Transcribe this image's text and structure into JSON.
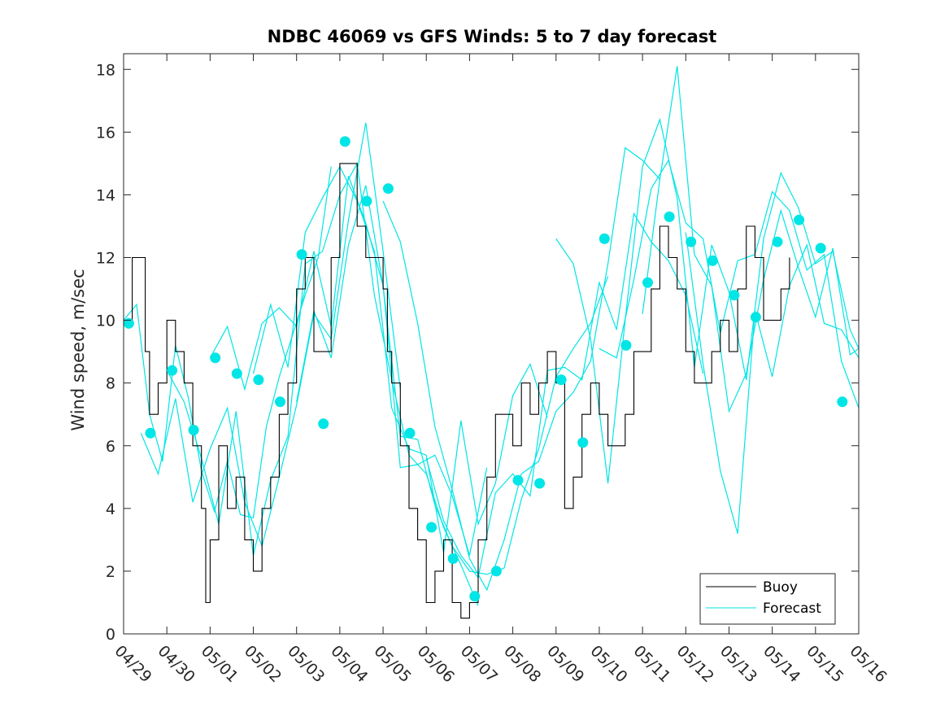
{
  "chart_data": {
    "type": "line",
    "title": "NDBC 46069 vs GFS Winds: 5 to 7 day forecast",
    "xlabel": "",
    "ylabel": "Wind speed, m/sec",
    "xlim": [
      0,
      17
    ],
    "ylim": [
      0,
      18.5
    ],
    "x_tick_labels": [
      "04/29",
      "04/30",
      "05/01",
      "05/02",
      "05/03",
      "05/04",
      "05/05",
      "05/06",
      "05/07",
      "05/08",
      "05/09",
      "05/10",
      "05/11",
      "05/12",
      "05/13",
      "05/14",
      "05/15",
      "05/16"
    ],
    "y_ticks": [
      0,
      2,
      4,
      6,
      8,
      10,
      12,
      14,
      16,
      18
    ],
    "legend": {
      "position": "bottom-right",
      "entries": [
        {
          "label": "Buoy",
          "color": "#000000"
        },
        {
          "label": "Forecast",
          "color": "#00e5e5"
        }
      ]
    },
    "colors": {
      "buoy": "#000000",
      "forecast": "#00e5e5",
      "markers": "#00e5e5"
    },
    "buoy": {
      "name": "Buoy",
      "x": [
        0.0,
        0.2,
        0.35,
        0.5,
        0.6,
        0.8,
        1.0,
        1.2,
        1.4,
        1.6,
        1.8,
        1.9,
        2.0,
        2.2,
        2.4,
        2.6,
        2.8,
        3.0,
        3.2,
        3.4,
        3.6,
        3.8,
        4.0,
        4.2,
        4.4,
        4.6,
        4.8,
        5.0,
        5.2,
        5.4,
        5.6,
        5.8,
        6.0,
        6.1,
        6.2,
        6.4,
        6.6,
        6.8,
        7.0,
        7.2,
        7.4,
        7.6,
        7.8,
        8.0,
        8.2,
        8.4,
        8.6,
        8.8,
        9.0,
        9.2,
        9.4,
        9.6,
        9.8,
        10.0,
        10.2,
        10.4,
        10.6,
        10.8,
        11.0,
        11.2,
        11.4,
        11.6,
        11.8,
        12.0,
        12.2,
        12.4,
        12.6,
        12.8,
        13.0,
        13.2,
        13.4,
        13.6,
        13.8,
        14.0,
        14.2,
        14.4,
        14.6,
        14.8,
        15.0,
        15.2,
        15.4
      ],
      "y": [
        10,
        12,
        12,
        9,
        7,
        8,
        10,
        9,
        8,
        6,
        4,
        1,
        3,
        6,
        4,
        5,
        3,
        2,
        4,
        5,
        7,
        8,
        11,
        12,
        9,
        9,
        12,
        15,
        15,
        13,
        12,
        12,
        11,
        9,
        8,
        6,
        4,
        3,
        1,
        2,
        3,
        1,
        0.5,
        1,
        3,
        5,
        7,
        7,
        6,
        8,
        7,
        8,
        9,
        8,
        4,
        5,
        7,
        8,
        7,
        6,
        6,
        7,
        9,
        9,
        11,
        13,
        12,
        11,
        9,
        8,
        8,
        9,
        10,
        9,
        11,
        13,
        12,
        10,
        10,
        11,
        12
      ]
    },
    "forecast_series": [
      {
        "x": [
          0.0,
          0.3,
          0.6,
          0.9,
          1.2,
          1.5,
          1.8,
          2.1,
          2.4,
          2.7,
          3.0,
          3.3,
          3.6,
          3.9,
          4.2,
          4.5,
          4.8
        ],
        "y": [
          10,
          10.5,
          7,
          5.5,
          9.2,
          7.5,
          5.2,
          3.9,
          5.5,
          3.8,
          3.7,
          6.6,
          8.2,
          9.5,
          10.8,
          12,
          14.9
        ]
      },
      {
        "x": [
          0.4,
          0.8,
          1.2,
          1.6,
          2.0,
          2.4,
          2.8,
          3.2,
          3.6,
          4.0,
          4.4,
          4.8,
          5.2,
          5.6,
          6.0,
          6.4
        ],
        "y": [
          6.4,
          5.1,
          7.5,
          4.2,
          5.9,
          7.2,
          4.2,
          2.8,
          5,
          7.3,
          10.2,
          9.4,
          13.2,
          16.3,
          12.2,
          7.8
        ]
      },
      {
        "x": [
          1.0,
          1.4,
          1.8,
          2.2,
          2.6,
          3.0,
          3.4,
          3.8,
          4.2,
          4.6,
          5.0,
          5.4,
          5.8,
          6.2,
          6.6,
          7.0,
          7.4,
          7.8,
          8.2
        ],
        "y": [
          8.4,
          7.4,
          5.6,
          3.5,
          7.1,
          2.5,
          4.9,
          6.3,
          11.8,
          12.2,
          14,
          15,
          10.8,
          8.1,
          5.7,
          5.1,
          3.4,
          2.2,
          0.9
        ]
      },
      {
        "x": [
          2.0,
          2.4,
          2.8,
          3.2,
          3.6,
          4.0,
          4.4,
          4.8,
          5.2,
          5.6,
          6.0,
          6.4,
          6.8,
          7.2,
          7.6,
          8.0,
          8.4
        ],
        "y": [
          8.8,
          9.8,
          7.8,
          9.9,
          10.4,
          9.8,
          12.2,
          9.8,
          14.6,
          13.1,
          11.1,
          5.3,
          5.4,
          5.7,
          4.4,
          2.5,
          5.3
        ]
      },
      {
        "x": [
          3.0,
          3.4,
          3.8,
          4.2,
          4.6,
          5.0,
          5.4,
          5.8,
          6.2,
          6.6,
          7.0,
          7.4,
          7.8,
          8.2,
          8.6,
          9.0,
          9.4,
          9.8
        ],
        "y": [
          8.3,
          10.5,
          8.5,
          12.8,
          13.9,
          14.9,
          13.8,
          12.2,
          7.2,
          5.9,
          5.7,
          2.6,
          6.8,
          3.5,
          4.8,
          7.6,
          8.6,
          6.9
        ]
      },
      {
        "x": [
          4.0,
          4.4,
          4.8,
          5.2,
          5.6,
          6.0,
          6.4,
          6.8,
          7.2,
          7.6,
          8.0,
          8.4,
          8.8,
          9.2,
          9.6,
          10.0,
          10.4,
          10.8,
          11.2
        ],
        "y": [
          7.4,
          10.3,
          8.8,
          12.4,
          14.3,
          11.1,
          6.3,
          6.2,
          4.1,
          2.8,
          2,
          1.9,
          2.1,
          4.3,
          5.9,
          8.2,
          9.1,
          9.9,
          11.4
        ]
      },
      {
        "x": [
          6.0,
          6.4,
          6.8,
          7.2,
          7.6,
          8.0,
          8.4,
          8.8,
          9.2,
          9.6,
          10.0,
          10.4,
          10.8,
          11.2,
          11.6,
          12.0,
          12.4
        ],
        "y": [
          13.8,
          12.5,
          9.9,
          6.6,
          4.6,
          2.4,
          1.4,
          3,
          5.1,
          5.5,
          7.1,
          7.7,
          8.7,
          11.8,
          15.5,
          15.1,
          14.5
        ]
      },
      {
        "x": [
          7.0,
          7.4,
          7.8,
          8.2,
          8.6,
          9.0,
          9.4,
          9.8,
          10.2,
          10.6,
          11.0,
          11.4,
          11.8,
          12.2,
          12.6,
          13.0,
          13.4
        ],
        "y": [
          5.6,
          3.6,
          2.5,
          1.8,
          4.5,
          5.1,
          4.4,
          8.4,
          8.5,
          8.1,
          11.2,
          9.7,
          13.4,
          12.5,
          11.9,
          10.8,
          8.3
        ]
      },
      {
        "x": [
          10.0,
          10.4,
          10.8,
          11.2,
          11.6,
          12.0,
          12.4,
          12.8,
          13.2,
          13.6,
          14.0,
          14.4,
          14.8,
          15.2,
          15.6,
          16.0,
          16.4,
          16.8,
          17.0
        ],
        "y": [
          12.6,
          11.8,
          9.4,
          4.8,
          10,
          14.9,
          16.4,
          13.9,
          8.5,
          12.4,
          10.9,
          8.1,
          12.6,
          14.7,
          13.6,
          11.8,
          12.2,
          9.7,
          9.1
        ]
      },
      {
        "x": [
          11.0,
          11.4,
          11.8,
          12.2,
          12.6,
          13.0,
          13.4,
          13.8,
          14.2,
          14.6,
          15.0,
          15.4,
          15.8,
          16.2,
          16.6,
          17.0
        ],
        "y": [
          9.1,
          8.8,
          11.3,
          14.2,
          15.1,
          13.1,
          12.6,
          9.6,
          11.9,
          12.1,
          14.1,
          13.5,
          11.6,
          12.1,
          8.7,
          7.2
        ]
      },
      {
        "x": [
          12.0,
          12.4,
          12.8,
          13.2,
          13.6,
          14.0,
          14.4,
          14.8,
          15.2,
          15.6,
          16.0,
          16.4,
          16.8,
          17.0
        ],
        "y": [
          10.2,
          14.5,
          18.1,
          12.1,
          11.1,
          7.1,
          8.3,
          11.3,
          13.5,
          11.7,
          10.1,
          12.3,
          8.9,
          9.1
        ]
      },
      {
        "x": [
          13.0,
          13.4,
          13.8,
          14.2,
          14.6,
          15.0,
          15.4,
          15.8,
          16.2,
          16.6,
          17.0
        ],
        "y": [
          12.8,
          8.6,
          5.2,
          3.2,
          10.3,
          8.2,
          11.1,
          12.4,
          9.9,
          9.7,
          8.8
        ]
      }
    ],
    "forecast_points": {
      "x": [
        0.12,
        0.62,
        1.12,
        1.62,
        2.12,
        2.62,
        3.12,
        3.62,
        4.12,
        4.62,
        5.12,
        5.62,
        6.12,
        6.62,
        7.12,
        7.62,
        8.12,
        8.62,
        9.12,
        9.62,
        10.12,
        10.62,
        11.12,
        11.62,
        12.12,
        12.62,
        13.12,
        13.62,
        14.12,
        14.62,
        15.12,
        15.62,
        16.12,
        16.62
      ],
      "y": [
        9.9,
        6.4,
        8.4,
        6.5,
        8.8,
        8.3,
        8.1,
        7.4,
        12.1,
        6.7,
        15.7,
        13.8,
        14.2,
        6.4,
        3.4,
        2.4,
        1.2,
        2.0,
        4.9,
        4.8,
        8.1,
        6.1,
        12.6,
        9.2,
        11.2,
        13.3,
        12.5,
        11.9,
        10.8,
        10.1,
        12.5,
        13.2,
        12.3,
        7.4
      ]
    }
  }
}
